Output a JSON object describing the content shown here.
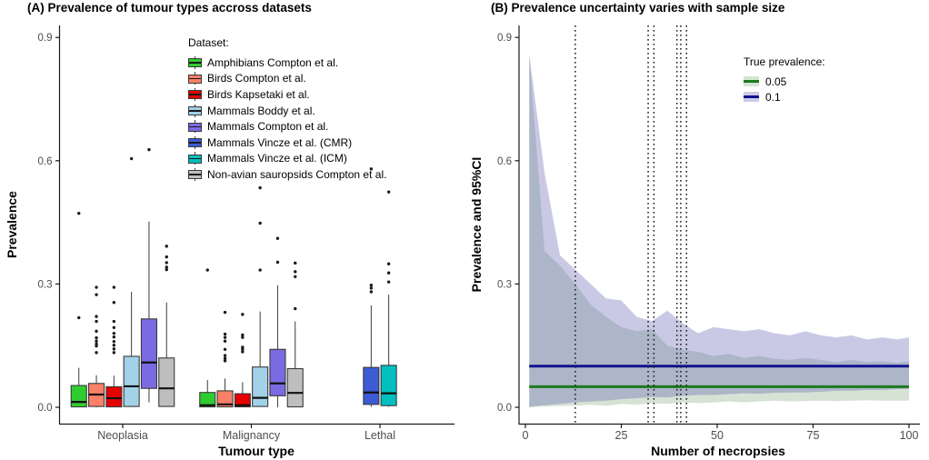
{
  "panelA": {
    "title": "(A) Prevalence of tumour types accross datasets",
    "x_label": "Tumour type",
    "y_label": "Prevalence",
    "legend_title": "Dataset:"
  },
  "panelB": {
    "title": "(B) Prevalence uncertainty varies with sample size",
    "x_label": "Number of necropsies",
    "y_label": "Prevalence and 95%CI",
    "legend_title": "True prevalence:"
  },
  "chart_data": [
    {
      "type": "boxplot",
      "title": "(A) Prevalence of tumour types accross datasets",
      "xlabel": "Tumour type",
      "ylabel": "Prevalence",
      "ylim": [
        0,
        0.93
      ],
      "yticks": [
        0,
        0.3,
        0.6,
        0.9
      ],
      "ytick_labels": [
        "0.0",
        "0.3",
        "0.6",
        "0.9"
      ],
      "categories": [
        "Neoplasia",
        "Malignancy",
        "Lethal"
      ],
      "legend_title": "Dataset:",
      "datasets": [
        {
          "label": "Amphibians Compton et al.",
          "color": "#2FCC2F"
        },
        {
          "label": "Birds Compton et al.",
          "color": "#FA8068"
        },
        {
          "label": "Birds Kapsetaki et al.",
          "color": "#E60000"
        },
        {
          "label": "Mammals Boddy et al.",
          "color": "#A2D1E8"
        },
        {
          "label": "Mammals Compton et al.",
          "color": "#7A6BE3"
        },
        {
          "label": "Mammals Vincze et al. (CMR)",
          "color": "#3C5BD4"
        },
        {
          "label": "Mammals Vincze et al. (ICM)",
          "color": "#00BFBF"
        },
        {
          "label": "Non-avian sauropsids Compton et al.",
          "color": "#BEBEBE"
        }
      ],
      "groups": [
        {
          "category": "Neoplasia",
          "boxes": [
            {
              "dataset": 0,
              "lo": 0.0,
              "q1": 0.001,
              "med": 0.013,
              "q3": 0.053,
              "hi": 0.096,
              "outliers": [
                0.218,
                0.472
              ]
            },
            {
              "dataset": 1,
              "lo": 0.0,
              "q1": 0.002,
              "med": 0.031,
              "q3": 0.058,
              "hi": 0.078,
              "outliers": [
                0.133,
                0.149,
                0.154,
                0.161,
                0.169,
                0.185,
                0.209,
                0.221,
                0.274,
                0.292
              ]
            },
            {
              "dataset": 2,
              "lo": 0.0,
              "q1": 0.001,
              "med": 0.022,
              "q3": 0.05,
              "hi": 0.077,
              "outliers": [
                0.133,
                0.142,
                0.151,
                0.16,
                0.171,
                0.18,
                0.194,
                0.209,
                0.255,
                0.292
              ]
            },
            {
              "dataset": 3,
              "lo": 0.001,
              "q1": 0.002,
              "med": 0.051,
              "q3": 0.124,
              "hi": 0.281,
              "outliers": [
                0.605
              ]
            },
            {
              "dataset": 4,
              "lo": 0.012,
              "q1": 0.046,
              "med": 0.109,
              "q3": 0.215,
              "hi": 0.452,
              "outliers": [
                0.627
              ]
            },
            {
              "dataset": 7,
              "lo": 0.001,
              "q1": 0.002,
              "med": 0.046,
              "q3": 0.12,
              "hi": 0.255,
              "outliers": [
                0.335,
                0.341,
                0.352,
                0.366,
                0.392
              ]
            }
          ]
        },
        {
          "category": "Malignancy",
          "boxes": [
            {
              "dataset": 0,
              "lo": 0.0,
              "q1": 0.001,
              "med": 0.005,
              "q3": 0.036,
              "hi": 0.066,
              "outliers": [
                0.334
              ]
            },
            {
              "dataset": 1,
              "lo": 0.0,
              "q1": 0.001,
              "med": 0.007,
              "q3": 0.04,
              "hi": 0.07,
              "outliers": [
                0.113,
                0.119,
                0.126,
                0.141,
                0.161,
                0.17,
                0.178,
                0.231
              ]
            },
            {
              "dataset": 2,
              "lo": 0.0,
              "q1": 0.001,
              "med": 0.005,
              "q3": 0.033,
              "hi": 0.061,
              "outliers": [
                0.135,
                0.141,
                0.146,
                0.17,
                0.176,
                0.226
              ]
            },
            {
              "dataset": 3,
              "lo": 0.001,
              "q1": 0.002,
              "med": 0.023,
              "q3": 0.098,
              "hi": 0.233,
              "outliers": [
                0.334,
                0.448,
                0.534
              ]
            },
            {
              "dataset": 4,
              "lo": 0.0,
              "q1": 0.028,
              "med": 0.058,
              "q3": 0.141,
              "hi": 0.297,
              "outliers": [
                0.353,
                0.411
              ]
            },
            {
              "dataset": 7,
              "lo": 0.0,
              "q1": 0.001,
              "med": 0.035,
              "q3": 0.094,
              "hi": 0.209,
              "outliers": [
                0.24,
                0.318,
                0.33,
                0.351
              ]
            }
          ]
        },
        {
          "category": "Lethal",
          "boxes": [
            {
              "dataset": 5,
              "lo": 0.001,
              "q1": 0.007,
              "med": 0.036,
              "q3": 0.097,
              "hi": 0.248,
              "outliers": [
                0.281,
                0.29,
                0.297,
                0.58
              ]
            },
            {
              "dataset": 6,
              "lo": 0.001,
              "q1": 0.004,
              "med": 0.034,
              "q3": 0.102,
              "hi": 0.274,
              "outliers": [
                0.305,
                0.327,
                0.349,
                0.524
              ]
            }
          ]
        }
      ]
    },
    {
      "type": "area",
      "title": "(B) Prevalence uncertainty varies with sample size",
      "xlabel": "Number of necropsies",
      "ylabel": "Prevalence and 95%CI",
      "xlim": [
        0,
        100
      ],
      "ylim": [
        0,
        0.93
      ],
      "xticks": [
        0,
        25,
        50,
        75,
        100
      ],
      "xtick_labels": [
        "0",
        "25",
        "50",
        "75",
        "100"
      ],
      "yticks": [
        0,
        0.3,
        0.6,
        0.9
      ],
      "ytick_labels": [
        "0.0",
        "0.3",
        "0.6",
        "0.9"
      ],
      "legend_title": "True prevalence:",
      "vlines": [
        13,
        32,
        33.5,
        39.5,
        40.5,
        42
      ],
      "x": [
        1,
        5,
        9,
        13,
        17,
        21,
        25,
        29,
        33,
        37,
        41,
        45,
        49,
        53,
        57,
        61,
        65,
        69,
        73,
        77,
        81,
        85,
        89,
        93,
        97,
        100
      ],
      "series": [
        {
          "name": "0.05",
          "true_value": 0.05,
          "line_color": "#1C7A1C",
          "ribbon_color": "rgba(90,140,85,0.25)",
          "ribbon_legend": "#D6E4D2",
          "hi": [
            0.855,
            0.38,
            0.345,
            0.3,
            0.25,
            0.22,
            0.195,
            0.185,
            0.19,
            0.15,
            0.14,
            0.135,
            0.125,
            0.13,
            0.12,
            0.125,
            0.118,
            0.115,
            0.12,
            0.115,
            0.11,
            0.115,
            0.11,
            0.112,
            0.108,
            0.112
          ],
          "lo": [
            0.0,
            0.002,
            0.003,
            0.004,
            0.006,
            0.004,
            0.008,
            0.006,
            0.01,
            0.008,
            0.012,
            0.01,
            0.012,
            0.014,
            0.012,
            0.014,
            0.016,
            0.014,
            0.015,
            0.016,
            0.015,
            0.016,
            0.017,
            0.016,
            0.016,
            0.016
          ]
        },
        {
          "name": "0.1",
          "true_value": 0.1,
          "line_color": "#10128F",
          "ribbon_color": "rgba(90,90,175,0.33)",
          "ribbon_legend": "#CBCBE6",
          "hi": [
            0.86,
            0.57,
            0.37,
            0.335,
            0.3,
            0.265,
            0.26,
            0.22,
            0.21,
            0.235,
            0.205,
            0.18,
            0.195,
            0.19,
            0.185,
            0.19,
            0.18,
            0.175,
            0.185,
            0.175,
            0.17,
            0.175,
            0.165,
            0.17,
            0.165,
            0.17
          ],
          "lo": [
            0.001,
            0.005,
            0.008,
            0.012,
            0.014,
            0.016,
            0.02,
            0.022,
            0.025,
            0.024,
            0.028,
            0.03,
            0.03,
            0.032,
            0.034,
            0.033,
            0.035,
            0.036,
            0.036,
            0.038,
            0.04,
            0.04,
            0.042,
            0.042,
            0.044,
            0.045
          ]
        }
      ]
    }
  ]
}
